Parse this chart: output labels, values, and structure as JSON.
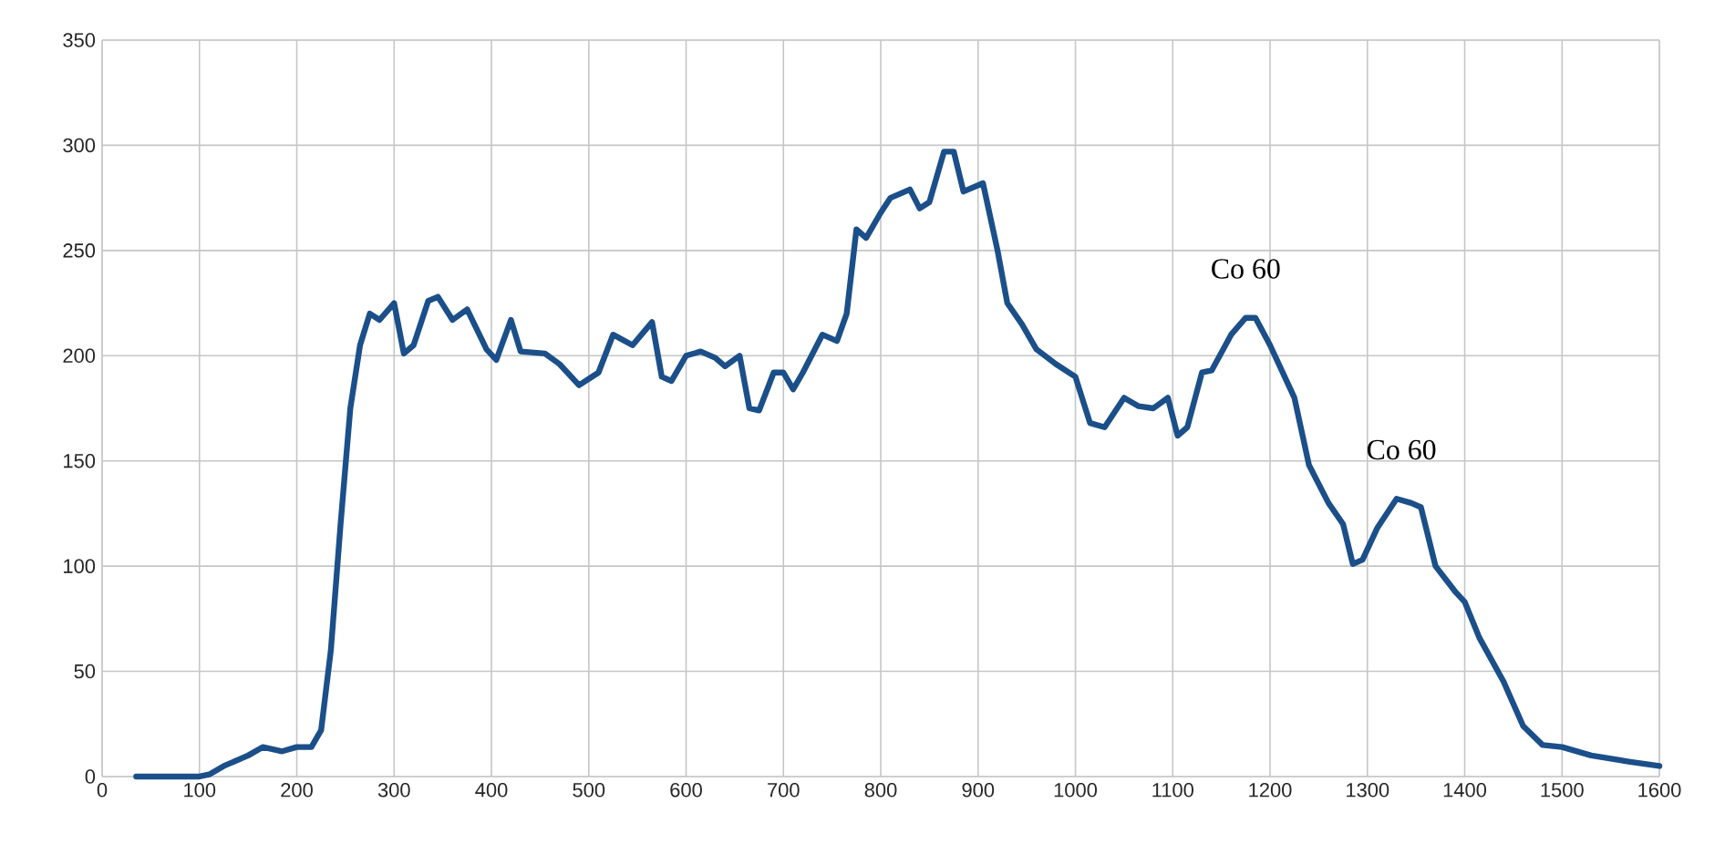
{
  "chart_data": {
    "type": "line",
    "xlim": [
      0,
      1600
    ],
    "ylim": [
      0,
      350
    ],
    "xticks": [
      0,
      100,
      200,
      300,
      400,
      500,
      600,
      700,
      800,
      900,
      1000,
      1100,
      1200,
      1300,
      1400,
      1500,
      1600
    ],
    "yticks": [
      0,
      50,
      100,
      150,
      200,
      250,
      300,
      350
    ],
    "grid": true,
    "line_style": "solid",
    "x": [
      35,
      100,
      110,
      125,
      150,
      165,
      185,
      200,
      215,
      225,
      235,
      245,
      255,
      265,
      275,
      285,
      300,
      310,
      320,
      335,
      345,
      360,
      375,
      395,
      405,
      420,
      430,
      455,
      470,
      490,
      510,
      525,
      545,
      565,
      575,
      585,
      600,
      615,
      630,
      640,
      655,
      665,
      675,
      690,
      700,
      710,
      720,
      740,
      755,
      765,
      775,
      785,
      800,
      810,
      830,
      840,
      850,
      865,
      875,
      885,
      905,
      920,
      930,
      945,
      960,
      980,
      1000,
      1015,
      1030,
      1050,
      1065,
      1080,
      1095,
      1105,
      1115,
      1130,
      1140,
      1160,
      1175,
      1185,
      1200,
      1215,
      1225,
      1240,
      1260,
      1275,
      1285,
      1295,
      1310,
      1330,
      1345,
      1355,
      1370,
      1390,
      1400,
      1415,
      1440,
      1460,
      1480,
      1500,
      1530,
      1570,
      1600
    ],
    "series": [
      {
        "color": "#1b4f8a",
        "values": [
          0,
          0,
          1,
          5,
          10,
          14,
          12,
          14,
          14,
          22,
          60,
          120,
          175,
          205,
          220,
          217,
          225,
          201,
          205,
          226,
          228,
          217,
          222,
          203,
          198,
          217,
          202,
          201,
          196,
          186,
          192,
          210,
          205,
          216,
          190,
          188,
          200,
          202,
          199,
          195,
          200,
          175,
          174,
          192,
          192,
          184,
          192,
          210,
          207,
          220,
          260,
          256,
          268,
          275,
          279,
          270,
          273,
          297,
          297,
          278,
          282,
          250,
          225,
          215,
          203,
          196,
          190,
          168,
          166,
          180,
          176,
          175,
          180,
          162,
          166,
          192,
          193,
          210,
          218,
          218,
          205,
          190,
          180,
          148,
          130,
          120,
          101,
          103,
          118,
          132,
          130,
          128,
          100,
          88,
          83,
          66,
          45,
          24,
          15,
          14,
          10,
          7,
          5
        ]
      }
    ],
    "annotations": [
      {
        "text": "Co 60",
        "x": 1175,
        "y": 218
      },
      {
        "text": "Co 60",
        "x": 1335,
        "y": 132
      }
    ]
  }
}
